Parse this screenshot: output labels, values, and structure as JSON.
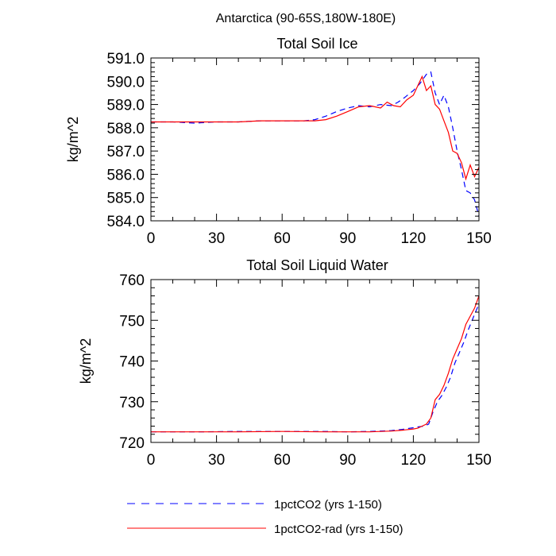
{
  "figure": {
    "main_title": "Antarctica (90-65S,180W-180E)"
  },
  "legend": {
    "placement": "bottom",
    "entries": [
      {
        "label": "1pctCO2 (yrs 1-150)",
        "color": "#0000ff",
        "dash": "dashed"
      },
      {
        "label": "1pctCO2-rad (yrs 1-150)",
        "color": "#ff0000",
        "dash": "solid"
      }
    ]
  },
  "chart_data": [
    {
      "type": "line",
      "title": "Total Soil Ice",
      "xlabel": "",
      "ylabel": "kg/m^2",
      "xlim": [
        0,
        150
      ],
      "ylim": [
        584.0,
        591.0
      ],
      "xticks": [
        0,
        30,
        60,
        90,
        120,
        150
      ],
      "yticks": [
        584.0,
        585.0,
        586.0,
        587.0,
        588.0,
        589.0,
        590.0,
        591.0
      ],
      "ytick_labels": [
        "584.0",
        "585.0",
        "586.0",
        "587.0",
        "588.0",
        "589.0",
        "590.0",
        "591.0"
      ],
      "grid": false,
      "series": [
        {
          "name": "1pctCO2 (yrs 1-150)",
          "color": "#0000ff",
          "dash": "dashed",
          "x": [
            0,
            10,
            20,
            30,
            40,
            50,
            60,
            70,
            75,
            80,
            85,
            90,
            95,
            100,
            105,
            110,
            113,
            116,
            120,
            123,
            126,
            128,
            130,
            132,
            134,
            136,
            138,
            140,
            142,
            144,
            146,
            148,
            150
          ],
          "y": [
            588.25,
            588.25,
            588.2,
            588.25,
            588.25,
            588.3,
            588.3,
            588.3,
            588.35,
            588.5,
            588.7,
            588.85,
            588.95,
            588.9,
            589.0,
            588.95,
            589.1,
            589.3,
            589.6,
            589.9,
            590.3,
            590.4,
            589.5,
            589.0,
            589.4,
            588.9,
            588.0,
            587.0,
            586.2,
            585.3,
            585.2,
            584.9,
            584.2
          ]
        },
        {
          "name": "1pctCO2-rad (yrs 1-150)",
          "color": "#ff0000",
          "dash": "solid",
          "x": [
            0,
            10,
            20,
            30,
            40,
            50,
            60,
            70,
            75,
            80,
            85,
            90,
            95,
            100,
            105,
            108,
            111,
            114,
            117,
            120,
            122,
            124,
            126,
            128,
            130,
            132,
            134,
            136,
            138,
            140,
            142,
            144,
            146,
            148,
            150
          ],
          "y": [
            588.25,
            588.25,
            588.25,
            588.25,
            588.25,
            588.3,
            588.3,
            588.3,
            588.3,
            588.35,
            588.5,
            588.7,
            588.9,
            588.95,
            588.85,
            589.1,
            588.95,
            588.9,
            589.2,
            589.4,
            589.8,
            590.2,
            589.6,
            589.8,
            589.0,
            588.8,
            588.3,
            587.8,
            587.0,
            586.9,
            586.5,
            585.8,
            586.4,
            585.9,
            586.3
          ]
        }
      ]
    },
    {
      "type": "line",
      "title": "Total Soil Liquid Water",
      "xlabel": "",
      "ylabel": "kg/m^2",
      "xlim": [
        0,
        150
      ],
      "ylim": [
        720,
        760
      ],
      "xticks": [
        0,
        30,
        60,
        90,
        120,
        150
      ],
      "yticks": [
        720,
        730,
        740,
        750,
        760
      ],
      "ytick_labels": [
        "720",
        "730",
        "740",
        "750",
        "760"
      ],
      "grid": false,
      "series": [
        {
          "name": "1pctCO2 (yrs 1-150)",
          "color": "#0000ff",
          "dash": "dashed",
          "x": [
            0,
            20,
            40,
            60,
            80,
            90,
            100,
            110,
            115,
            120,
            122,
            125,
            127,
            129,
            131,
            133,
            135,
            137,
            139,
            141,
            143,
            145,
            148,
            150
          ],
          "y": [
            722.6,
            722.6,
            722.7,
            722.7,
            722.7,
            722.6,
            722.7,
            722.9,
            723.2,
            723.6,
            723.8,
            724.0,
            724.5,
            727.5,
            730.0,
            731.5,
            733.5,
            736.0,
            739.5,
            742.0,
            744.5,
            747.5,
            751.5,
            754.0
          ]
        },
        {
          "name": "1pctCO2-rad (yrs 1-150)",
          "color": "#ff0000",
          "dash": "solid",
          "x": [
            0,
            20,
            40,
            60,
            80,
            90,
            100,
            110,
            115,
            120,
            122,
            124,
            126,
            128,
            130,
            132,
            134,
            136,
            138,
            140,
            142,
            144,
            146,
            148,
            150
          ],
          "y": [
            722.6,
            722.6,
            722.6,
            722.7,
            722.6,
            722.6,
            722.6,
            722.8,
            723.0,
            723.3,
            723.5,
            724.0,
            724.5,
            726.0,
            730.5,
            731.8,
            734.0,
            737.0,
            740.5,
            743.0,
            745.5,
            749.0,
            751.0,
            753.0,
            756.0
          ]
        }
      ]
    }
  ]
}
